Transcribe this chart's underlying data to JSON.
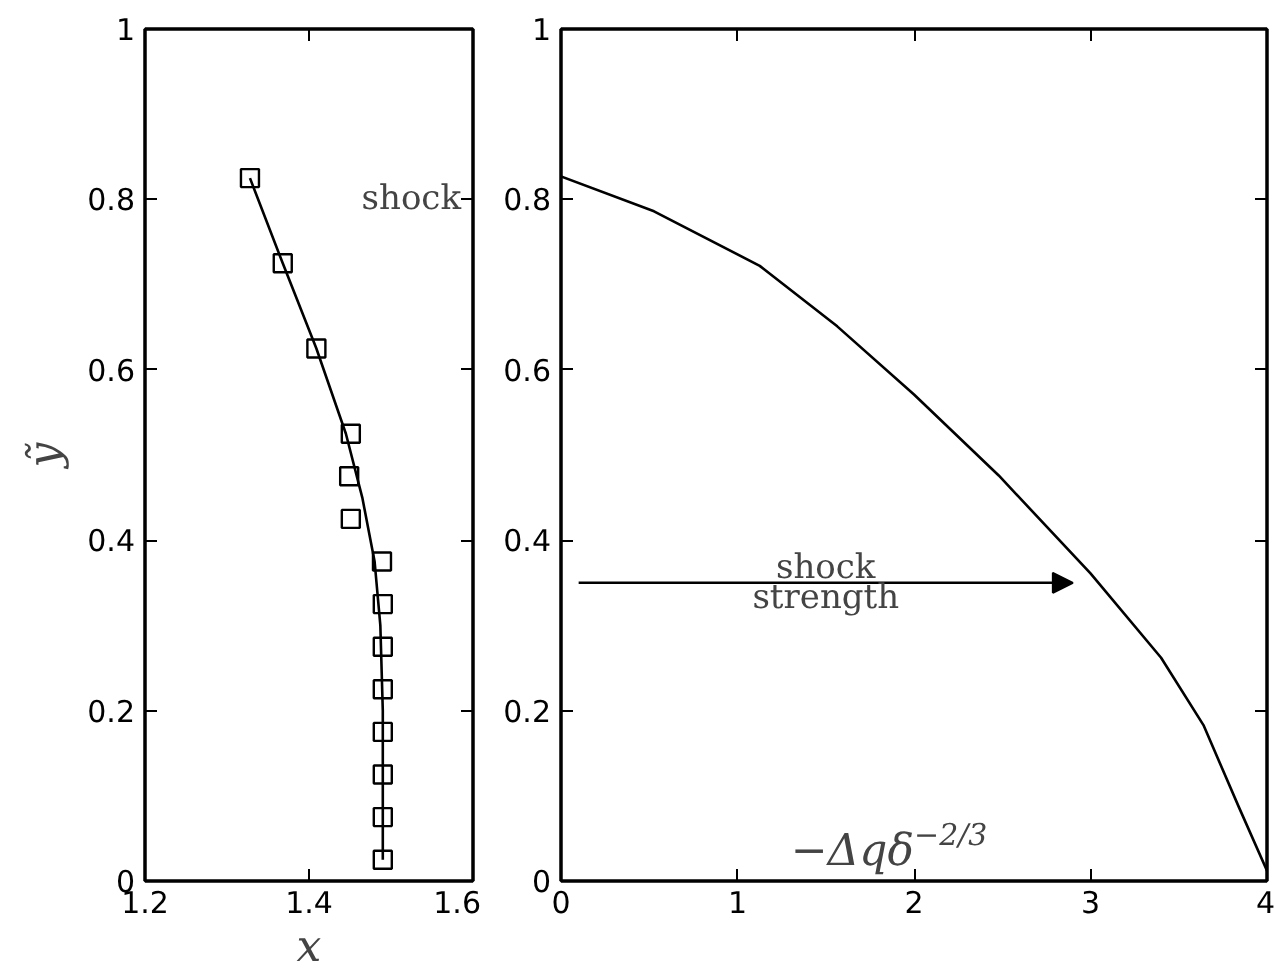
{
  "chart_data": [
    {
      "type": "line",
      "xlabel": "x",
      "ylabel": "ỹ",
      "xlim": [
        1.2,
        1.6
      ],
      "ylim": [
        0,
        1
      ],
      "xticks": [
        1.2,
        1.4,
        1.6
      ],
      "yticks": [
        0,
        0.2,
        0.4,
        0.6,
        0.8,
        1
      ],
      "grid": false,
      "annotations": [
        "shock"
      ],
      "series": [
        {
          "type": "scatter",
          "marker": "square",
          "color": "#000000",
          "x": [
            1.328,
            1.368,
            1.409,
            1.451,
            1.449,
            1.451,
            1.489,
            1.49,
            1.49,
            1.49,
            1.49,
            1.49,
            1.49,
            1.49
          ],
          "values": [
            0.825,
            0.725,
            0.625,
            0.525,
            0.475,
            0.425,
            0.375,
            0.325,
            0.275,
            0.225,
            0.175,
            0.125,
            0.075,
            0.025
          ]
        },
        {
          "color": "#000000",
          "x": [
            1.328,
            1.368,
            1.409,
            1.445,
            1.465,
            1.48,
            1.487,
            1.49,
            1.49
          ],
          "values": [
            0.825,
            0.725,
            0.625,
            0.525,
            0.45,
            0.375,
            0.3,
            0.2,
            0.025
          ]
        }
      ]
    },
    {
      "type": "line",
      "xlabel": "−Δqδ$^{−2/3}$",
      "xlim": [
        0,
        4
      ],
      "ylim": [
        0,
        1
      ],
      "xticks": [
        0,
        1,
        2,
        3,
        4
      ],
      "yticks": [
        0,
        0.2,
        0.4,
        0.6,
        0.8,
        1
      ],
      "grid": false,
      "annotations": [
        "shock\nstrength"
      ],
      "series": [
        {
          "color": "#000000",
          "x": [
            0,
            0.527,
            1.126,
            1.565,
            2.0,
            2.48,
            3.0,
            3.4,
            3.64,
            3.84,
            4.0
          ],
          "values": [
            0.827,
            0.786,
            0.722,
            0.651,
            0.571,
            0.476,
            0.361,
            0.262,
            0.183,
            0.087,
            0.012
          ]
        }
      ]
    }
  ]
}
